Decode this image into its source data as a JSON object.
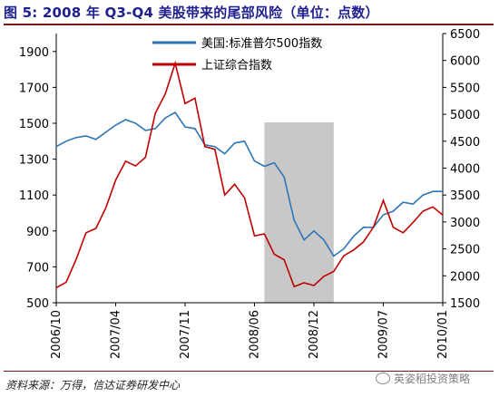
{
  "figure_title": "图 5:  2008 年 Q3-Q4 美股带来的尾部风险（单位：点数）",
  "source_note": "资料来源：万得，信达证券研发中心",
  "watermark": "英姿稻投资策略",
  "colors": {
    "sp500": "#2e75b6",
    "shcomp": "#c00000",
    "shade": "#c8c8c8",
    "title": "#1f1f8f"
  },
  "chart_data": {
    "type": "line",
    "title": "",
    "x_type": "date",
    "xlim": [
      "2006-10",
      "2010-01"
    ],
    "x_ticks": [
      "2006/10",
      "2007/04",
      "2007/11",
      "2008/06",
      "2008/12",
      "2009/07",
      "2010/01"
    ],
    "y_left": {
      "lim": [
        500,
        2000
      ],
      "ticks": [
        500,
        700,
        900,
        1100,
        1300,
        1500,
        1700,
        1900
      ]
    },
    "y_right": {
      "lim": [
        1500,
        6500
      ],
      "ticks": [
        1500,
        2000,
        2500,
        3000,
        3500,
        4000,
        4500,
        5000,
        5500,
        6000,
        6500
      ]
    },
    "shaded_region": {
      "x": [
        "2008-07",
        "2009-02"
      ]
    },
    "legend": {
      "position": "top-center"
    },
    "series": [
      {
        "name": "美国:标准普尔500指数",
        "axis": "left",
        "x": [
          "2006-10",
          "2006-11",
          "2006-12",
          "2007-01",
          "2007-02",
          "2007-03",
          "2007-04",
          "2007-05",
          "2007-06",
          "2007-07",
          "2007-08",
          "2007-09",
          "2007-10",
          "2007-11",
          "2007-12",
          "2008-01",
          "2008-02",
          "2008-03",
          "2008-04",
          "2008-05",
          "2008-06",
          "2008-07",
          "2008-08",
          "2008-09",
          "2008-10",
          "2008-11",
          "2008-12",
          "2009-01",
          "2009-02",
          "2009-03",
          "2009-04",
          "2009-05",
          "2009-06",
          "2009-07",
          "2009-08",
          "2009-09",
          "2009-10",
          "2009-11",
          "2009-12",
          "2010-01"
        ],
        "y": [
          1370,
          1400,
          1420,
          1430,
          1410,
          1450,
          1490,
          1520,
          1500,
          1460,
          1470,
          1530,
          1560,
          1480,
          1470,
          1380,
          1370,
          1330,
          1390,
          1400,
          1290,
          1260,
          1280,
          1200,
          960,
          850,
          900,
          850,
          760,
          800,
          870,
          920,
          920,
          990,
          1010,
          1060,
          1050,
          1100,
          1120,
          1120
        ]
      },
      {
        "name": "上证综合指数",
        "axis": "right",
        "x": [
          "2006-10",
          "2006-11",
          "2006-12",
          "2007-01",
          "2007-02",
          "2007-03",
          "2007-04",
          "2007-05",
          "2007-06",
          "2007-07",
          "2007-08",
          "2007-09",
          "2007-10",
          "2007-11",
          "2007-12",
          "2008-01",
          "2008-02",
          "2008-03",
          "2008-04",
          "2008-05",
          "2008-06",
          "2008-07",
          "2008-08",
          "2008-09",
          "2008-10",
          "2008-11",
          "2008-12",
          "2009-01",
          "2009-02",
          "2009-03",
          "2009-04",
          "2009-05",
          "2009-06",
          "2009-07",
          "2009-08",
          "2009-09",
          "2009-10",
          "2009-11",
          "2009-12",
          "2010-01"
        ],
        "y": [
          1780,
          1880,
          2300,
          2800,
          2880,
          3260,
          3780,
          4130,
          4040,
          4200,
          5020,
          5380,
          5950,
          5200,
          5300,
          4400,
          4350,
          3500,
          3700,
          3450,
          2740,
          2780,
          2400,
          2300,
          1800,
          1870,
          1820,
          1990,
          2080,
          2370,
          2480,
          2630,
          2900,
          3400,
          2900,
          2800,
          2990,
          3200,
          3280,
          3130
        ]
      }
    ]
  }
}
